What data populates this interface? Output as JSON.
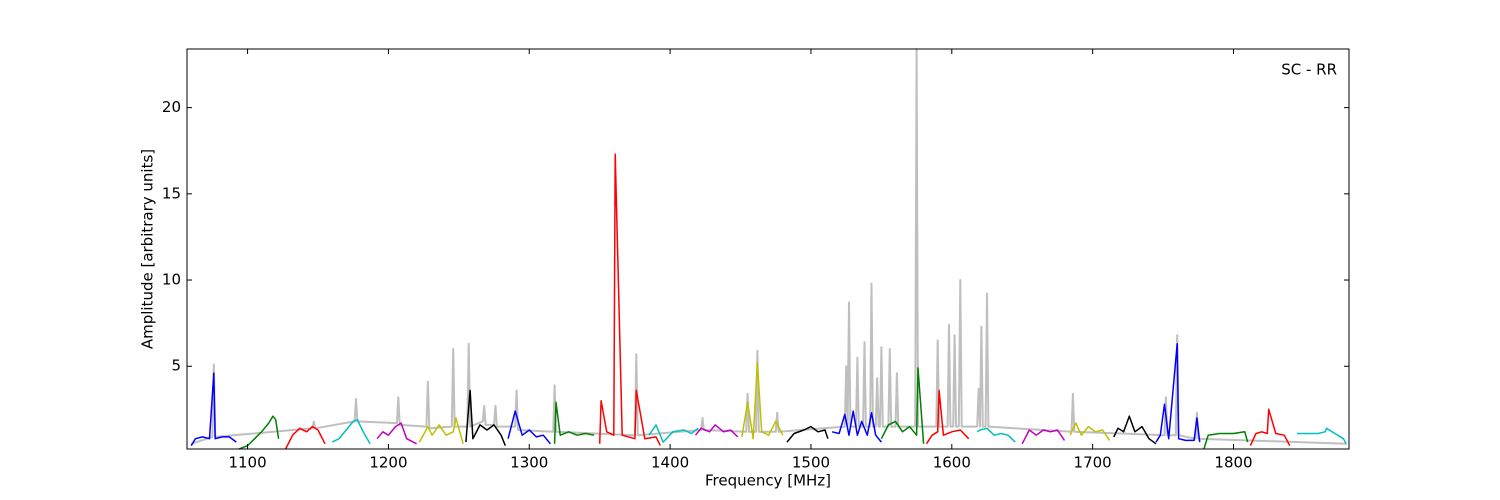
{
  "chart_data": {
    "type": "line",
    "xlabel": "Frequency [MHz]",
    "ylabel": "Amplitude [arbitrary units]",
    "annotation": "SC - RR",
    "xlim": [
      1057,
      1882
    ],
    "ylim": [
      0.2,
      23.4
    ],
    "xticks": [
      1100,
      1200,
      1300,
      1400,
      1500,
      1600,
      1700,
      1800
    ],
    "yticks": [
      5,
      10,
      15,
      20
    ],
    "series": [
      {
        "color": "#bfbfbf",
        "x": [
          1060,
          1075,
          1076,
          1077,
          1146,
          1147,
          1148,
          1176,
          1177,
          1178,
          1206,
          1207,
          1208,
          1227,
          1228,
          1229,
          1245,
          1246,
          1247,
          1256,
          1257,
          1258,
          1267,
          1268,
          1269,
          1275,
          1276,
          1277,
          1290,
          1291,
          1292,
          1317,
          1318,
          1319,
          1375,
          1376,
          1377,
          1422,
          1423,
          1424,
          1454,
          1455,
          1456,
          1461,
          1462,
          1463,
          1475,
          1476,
          1477,
          1524,
          1525,
          1526,
          1527,
          1528,
          1532,
          1533,
          1534,
          1537,
          1538,
          1539,
          1542,
          1543,
          1544,
          1546,
          1547,
          1548,
          1549,
          1550,
          1551,
          1555,
          1556,
          1557,
          1560,
          1561,
          1562,
          1574,
          1575,
          1576,
          1589,
          1590,
          1591,
          1597,
          1598,
          1599,
          1601,
          1602,
          1603,
          1605,
          1606,
          1607,
          1618,
          1619,
          1620,
          1621,
          1622,
          1624,
          1625,
          1626,
          1685,
          1686,
          1687,
          1751,
          1752,
          1753,
          1759,
          1760,
          1761,
          1773,
          1774,
          1775,
          1880
        ],
        "values": [
          0.5,
          0.9,
          5.1,
          0.9,
          1.4,
          1.8,
          1.4,
          1.8,
          3.1,
          1.8,
          1.7,
          3.2,
          1.6,
          1.5,
          4.1,
          1.4,
          1.5,
          6.0,
          1.5,
          1.5,
          6.3,
          1.5,
          1.8,
          2.7,
          1.6,
          1.6,
          2.7,
          1.5,
          1.5,
          3.6,
          1.3,
          1.2,
          3.9,
          1.2,
          1.0,
          5.7,
          1.0,
          1.3,
          2.0,
          1.3,
          1.2,
          3.4,
          1.2,
          1.2,
          5.9,
          1.2,
          1.2,
          2.3,
          1.2,
          1.5,
          5.0,
          1.5,
          8.7,
          1.5,
          1.5,
          5.5,
          1.5,
          1.5,
          6.4,
          1.5,
          1.5,
          9.8,
          1.5,
          1.5,
          4.3,
          1.5,
          1.5,
          6.1,
          1.5,
          1.5,
          6.0,
          1.5,
          1.5,
          4.6,
          1.5,
          1.5,
          23.4,
          1.5,
          1.5,
          6.5,
          1.5,
          1.5,
          7.4,
          1.5,
          1.5,
          6.8,
          1.5,
          1.5,
          10.0,
          1.5,
          1.5,
          3.7,
          1.5,
          7.3,
          1.5,
          1.5,
          9.2,
          1.5,
          1.2,
          3.4,
          1.2,
          1.0,
          3.2,
          1.0,
          1.0,
          6.8,
          1.0,
          0.8,
          2.3,
          0.8,
          0.5
        ]
      },
      {
        "color": "#0000ff",
        "x": [
          1060,
          1063,
          1068,
          1073,
          1076,
          1077,
          1082,
          1087,
          1092
        ],
        "values": [
          0.4,
          0.8,
          0.9,
          0.8,
          4.6,
          0.8,
          0.9,
          0.9,
          0.6
        ]
      },
      {
        "color": "#008000",
        "x": [
          1094,
          1100,
          1105,
          1110,
          1115,
          1118,
          1120,
          1122
        ],
        "values": [
          0.2,
          0.4,
          0.8,
          1.2,
          1.7,
          2.1,
          1.9,
          0.8
        ]
      },
      {
        "color": "#ff0000",
        "x": [
          1127,
          1132,
          1137,
          1142,
          1146,
          1150,
          1155
        ],
        "values": [
          0.2,
          1.0,
          1.4,
          1.2,
          1.5,
          1.3,
          0.5
        ]
      },
      {
        "color": "#00bfbf",
        "x": [
          1160,
          1165,
          1170,
          1175,
          1178,
          1182,
          1187
        ],
        "values": [
          0.6,
          0.8,
          1.3,
          1.8,
          1.9,
          1.2,
          0.5
        ]
      },
      {
        "color": "#bf00bf",
        "x": [
          1192,
          1196,
          1200,
          1205,
          1209,
          1213,
          1220
        ],
        "values": [
          0.8,
          1.2,
          1.0,
          1.5,
          1.7,
          0.8,
          0.5
        ]
      },
      {
        "color": "#bfbf00",
        "x": [
          1222,
          1228,
          1231,
          1236,
          1241,
          1246,
          1248,
          1253
        ],
        "values": [
          0.6,
          1.5,
          1.0,
          1.6,
          1.0,
          1.2,
          2.0,
          0.5
        ]
      },
      {
        "color": "#000000",
        "x": [
          1255,
          1258,
          1260,
          1265,
          1270,
          1275,
          1280,
          1283
        ],
        "values": [
          0.6,
          3.6,
          0.8,
          1.6,
          1.3,
          1.6,
          1.0,
          0.4
        ]
      },
      {
        "color": "#0000ff",
        "x": [
          1285,
          1290,
          1295,
          1300,
          1305,
          1310,
          1315
        ],
        "values": [
          0.8,
          2.4,
          1.0,
          1.3,
          0.9,
          1.0,
          0.5
        ]
      },
      {
        "color": "#008000",
        "x": [
          1318,
          1319,
          1322,
          1328,
          1334,
          1340,
          1346
        ],
        "values": [
          0.5,
          2.9,
          1.0,
          1.2,
          1.0,
          1.1,
          1.0
        ]
      },
      {
        "color": "#ff0000",
        "x": [
          1350,
          1351,
          1355,
          1360,
          1361,
          1366,
          1375,
          1376,
          1382,
          1390,
          1393
        ],
        "values": [
          0.5,
          3.0,
          1.2,
          1.0,
          17.3,
          1.0,
          0.8,
          3.6,
          0.8,
          0.9,
          0.4
        ]
      },
      {
        "color": "#00bfbf",
        "x": [
          1385,
          1390,
          1395,
          1402,
          1410,
          1415,
          1420
        ],
        "values": [
          1.0,
          1.6,
          0.6,
          1.2,
          1.3,
          1.1,
          1.4
        ]
      },
      {
        "color": "#bf00bf",
        "x": [
          1418,
          1422,
          1428,
          1432,
          1438,
          1443,
          1448
        ],
        "values": [
          1.0,
          1.4,
          1.2,
          1.6,
          1.2,
          1.3,
          0.9
        ]
      },
      {
        "color": "#bfbf00",
        "x": [
          1451,
          1455,
          1459,
          1462,
          1465,
          1470,
          1475,
          1480
        ],
        "values": [
          0.9,
          2.9,
          0.8,
          5.2,
          1.2,
          1.0,
          1.8,
          1.0
        ]
      },
      {
        "color": "#000000",
        "x": [
          1483,
          1488,
          1495,
          1500,
          1505,
          1510,
          1512
        ],
        "values": [
          0.6,
          1.1,
          1.3,
          1.5,
          1.2,
          1.3,
          0.8
        ]
      },
      {
        "color": "#0000ff",
        "x": [
          1515,
          1520,
          1524,
          1527,
          1530,
          1533,
          1536,
          1540,
          1543,
          1546,
          1550
        ],
        "values": [
          1.2,
          1.1,
          2.2,
          1.0,
          2.4,
          1.0,
          1.8,
          1.0,
          2.3,
          1.0,
          0.6
        ]
      },
      {
        "color": "#008000",
        "x": [
          1550,
          1555,
          1560,
          1565,
          1570,
          1575,
          1576,
          1580
        ],
        "values": [
          0.8,
          1.6,
          1.8,
          1.2,
          1.5,
          1.0,
          4.9,
          0.5
        ]
      },
      {
        "color": "#ff0000",
        "x": [
          1582,
          1586,
          1590,
          1591,
          1594,
          1600,
          1606,
          1612
        ],
        "values": [
          0.5,
          1.0,
          1.2,
          3.6,
          1.0,
          1.2,
          1.3,
          0.8
        ]
      },
      {
        "color": "#00bfbf",
        "x": [
          1618,
          1620,
          1625,
          1630,
          1635,
          1640,
          1645
        ],
        "values": [
          1.2,
          1.3,
          1.4,
          1.0,
          1.1,
          1.0,
          0.6
        ]
      },
      {
        "color": "#bf00bf",
        "x": [
          1650,
          1655,
          1660,
          1665,
          1670,
          1675,
          1680
        ],
        "values": [
          0.5,
          1.3,
          1.0,
          1.3,
          1.2,
          1.3,
          0.7
        ]
      },
      {
        "color": "#bfbf00",
        "x": [
          1684,
          1688,
          1692,
          1697,
          1702,
          1707,
          1712
        ],
        "values": [
          1.0,
          1.7,
          1.0,
          1.5,
          1.2,
          1.3,
          0.7
        ]
      },
      {
        "color": "#000000",
        "x": [
          1715,
          1718,
          1722,
          1726,
          1730,
          1735,
          1740,
          1745
        ],
        "values": [
          0.9,
          1.4,
          1.2,
          2.1,
          1.2,
          1.5,
          0.8,
          0.5
        ]
      },
      {
        "color": "#0000ff",
        "x": [
          1745,
          1748,
          1751,
          1754,
          1760,
          1761,
          1766,
          1772,
          1774,
          1776
        ],
        "values": [
          0.6,
          1.0,
          2.8,
          0.8,
          6.3,
          0.8,
          0.7,
          0.7,
          2.0,
          0.6
        ]
      },
      {
        "color": "#008000",
        "x": [
          1779,
          1782,
          1790,
          1800,
          1808,
          1810
        ],
        "values": [
          0.2,
          1.0,
          1.1,
          1.1,
          1.2,
          0.6
        ]
      },
      {
        "color": "#ff0000",
        "x": [
          1812,
          1816,
          1820,
          1824,
          1825,
          1830,
          1836,
          1840
        ],
        "values": [
          0.4,
          1.1,
          1.2,
          1.1,
          2.5,
          1.1,
          1.0,
          0.4
        ]
      },
      {
        "color": "#00bfbf",
        "x": [
          1845,
          1850,
          1860,
          1865,
          1866,
          1872,
          1878,
          1880
        ],
        "values": [
          1.1,
          1.1,
          1.1,
          1.2,
          1.4,
          1.1,
          0.8,
          0.5
        ]
      }
    ]
  }
}
